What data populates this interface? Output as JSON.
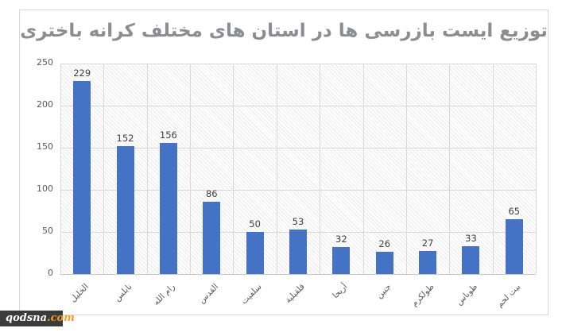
{
  "watermark": {
    "name": "qodsna",
    "domain": ".com",
    "background": "#3b3b3b",
    "name_color": "#ffffff",
    "domain_color": "#f59b22"
  },
  "chart_data": {
    "type": "bar",
    "title": "توزیع ایست بازرسی ها در استان های مختلف کرانه باختری",
    "title_color": "#8c8c93",
    "categories": [
      "الخليل",
      "نابلس",
      "رام الله",
      "القدس",
      "سلفيت",
      "قلقيلية",
      "أريحا",
      "جنين",
      "طولكرم",
      "طوباس",
      "بيت لحم"
    ],
    "values": [
      229,
      152,
      156,
      86,
      50,
      53,
      32,
      26,
      27,
      33,
      65
    ],
    "bar_color": "#4472c4",
    "data_labels": true,
    "data_label_color": "#404040",
    "xlabel": "",
    "ylabel": "",
    "ylim": [
      0,
      250
    ],
    "yticks": [
      0,
      50,
      100,
      150,
      200,
      250
    ],
    "grid": "horizontal-and-vertical",
    "gridline_color": "#d9d9d9",
    "plot_background_pattern": "light-diagonal-hatch",
    "x_label_rotation_deg": 45,
    "legend": "none"
  }
}
